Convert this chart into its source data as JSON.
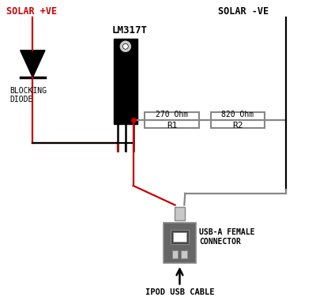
{
  "bg_color": "#ffffff",
  "solar_pos_label": "SOLAR +VE",
  "solar_neg_label": "SOLAR -VE",
  "lm317t_label": "LM317T",
  "blocking_diode_label": "BLOCKING\nDIODE",
  "r1_label": "R1",
  "r1_value": "270 Ohm",
  "r2_label": "R2",
  "r2_value": "820 Ohm",
  "usb_label": "USB-A FEMALE\nCONNECTOR",
  "ipod_label": "IPOD USB CABLE",
  "red": "#cc0000",
  "black": "#000000",
  "gray": "#888888",
  "light_gray": "#c8c8c8",
  "dark_gray": "#666666",
  "wire_lw": 1.6
}
